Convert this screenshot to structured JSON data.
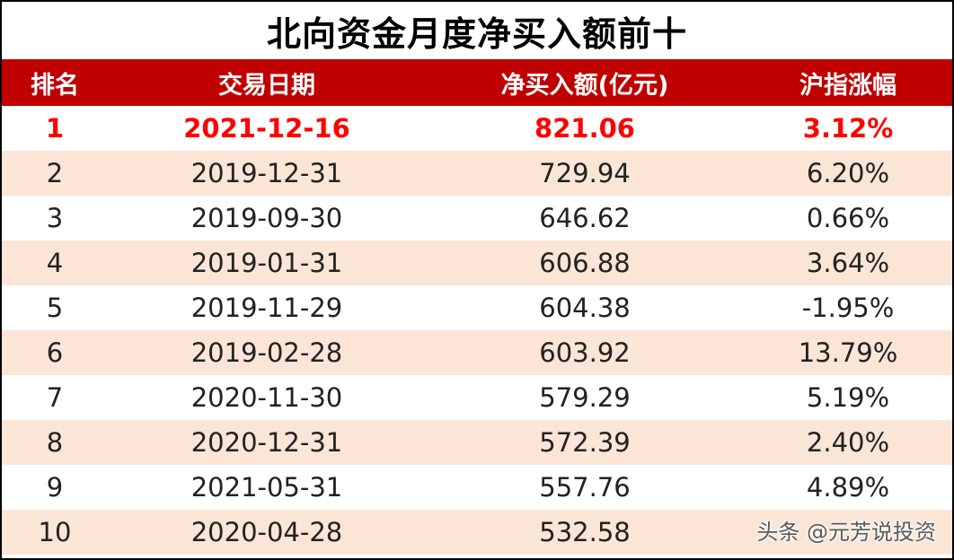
{
  "title": "北向资金月度净买入额前十",
  "columns": [
    "排名",
    "交易日期",
    "净买入额(亿元)",
    "沪指涨幅"
  ],
  "rows": [
    {
      "rank": "1",
      "date": "2021-12-16",
      "amount": "821.06",
      "change": "3.12%"
    },
    {
      "rank": "2",
      "date": "2019-12-31",
      "amount": "729.94",
      "change": "6.20%"
    },
    {
      "rank": "3",
      "date": "2019-09-30",
      "amount": "646.62",
      "change": "0.66%"
    },
    {
      "rank": "4",
      "date": "2019-01-31",
      "amount": "606.88",
      "change": "3.64%"
    },
    {
      "rank": "5",
      "date": "2019-11-29",
      "amount": "604.38",
      "change": "-1.95%"
    },
    {
      "rank": "6",
      "date": "2019-02-28",
      "amount": "603.92",
      "change": "13.79%"
    },
    {
      "rank": "7",
      "date": "2020-11-30",
      "amount": "579.29",
      "change": "5.19%"
    },
    {
      "rank": "8",
      "date": "2020-12-31",
      "amount": "572.39",
      "change": "2.40%"
    },
    {
      "rank": "9",
      "date": "2021-05-31",
      "amount": "557.76",
      "change": "4.89%"
    },
    {
      "rank": "10",
      "date": "2020-04-28",
      "amount": "532.58",
      "change": ""
    }
  ],
  "watermark": "头条 @元芳说投资",
  "colors": {
    "header_bg": "#c00000",
    "stripe": "#fbe5d6",
    "highlight": "#ff0000"
  }
}
